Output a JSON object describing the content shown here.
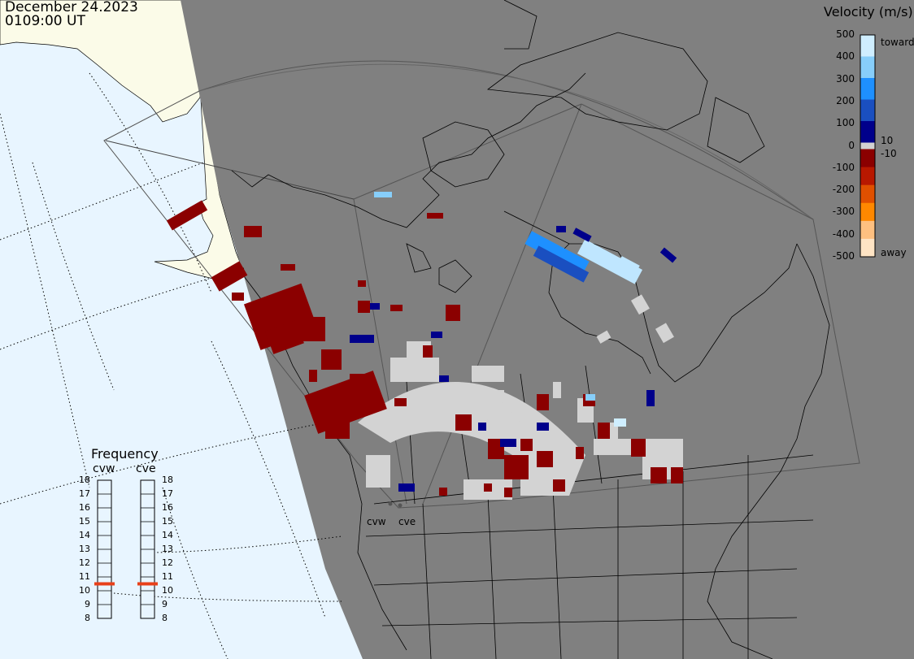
{
  "header": {
    "date": "December 24.2023",
    "time": "0109:00 UT"
  },
  "velocity_scale": {
    "title": "Velocity (m/s)",
    "ticks": [
      "500",
      "400",
      "300",
      "200",
      "100",
      "0",
      "-100",
      "-200",
      "-300",
      "-400",
      "-500"
    ],
    "side_labels": {
      "toward": "toward",
      "pos_threshold": "10",
      "neg_threshold": "-10",
      "away": "away"
    },
    "colors": [
      "#ffe4c4",
      "#ffc080",
      "#ff8800",
      "#e05000",
      "#b81800",
      "#8b0000",
      "#d2d2d2",
      "#00008b",
      "#1a4fc0",
      "#1e90ff",
      "#87cefa",
      "#cfeeff"
    ]
  },
  "frequency": {
    "title": "Frequency",
    "radars": [
      {
        "name": "cvw",
        "value_mhz": 11
      },
      {
        "name": "cve",
        "value_mhz": 11
      }
    ],
    "scale": [
      "18",
      "17",
      "16",
      "15",
      "14",
      "13",
      "12",
      "11",
      "10",
      "9",
      "8"
    ],
    "marker_color": "#e8401a"
  },
  "map": {
    "site_labels": [
      "cvw",
      "cve"
    ],
    "colors": {
      "ocean": "#e8f5ff",
      "land_day": "#fbfbe8",
      "night": "#808080",
      "ground_scatter": "#d3d3d3"
    }
  }
}
